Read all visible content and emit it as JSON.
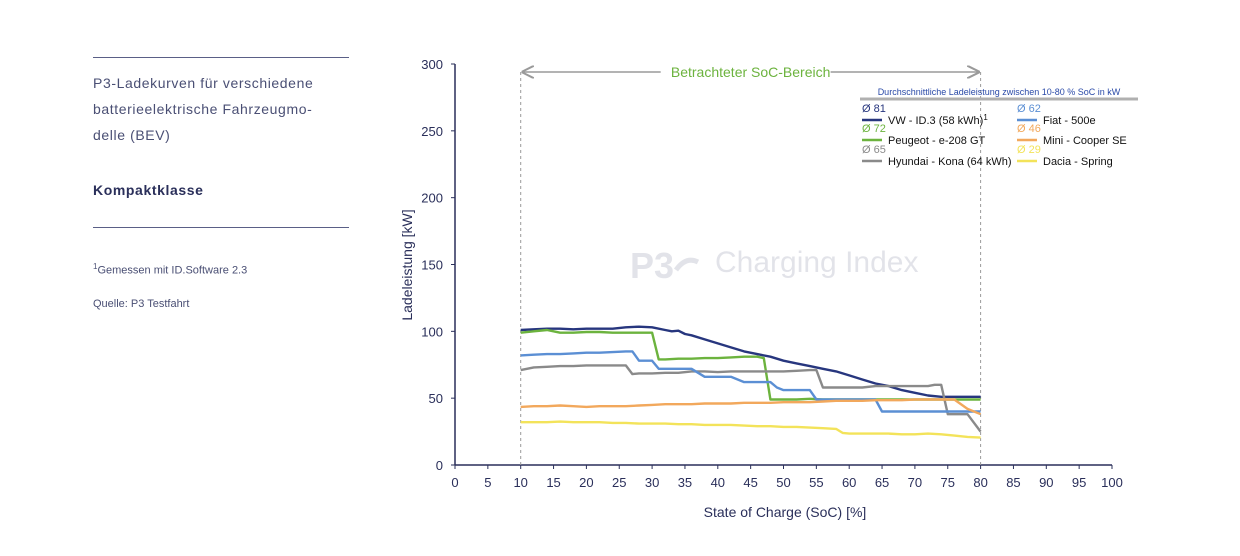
{
  "sidebar": {
    "caption": "P3-Ladekurven für verschiedene batterieelektrische Fahrzeugmo-delle (BEV)",
    "caption_lines": [
      "P3-Ladekurven für verschiedene",
      "batterieelektrische Fahrzeugmo-",
      "delle (BEV)"
    ],
    "category": "Kompaktklasse",
    "footnote_mark": "1",
    "footnote": "Gemessen mit ID.Software 2.3",
    "source": "Quelle: P3 Testfahrt"
  },
  "watermark": "Charging Index",
  "watermark_logo": "P3",
  "chart_data": {
    "type": "line",
    "title": "",
    "xlabel": "State of Charge (SoC) [%]",
    "ylabel": "Ladeleistung [kW]",
    "xlim": [
      0,
      100
    ],
    "ylim": [
      0,
      300
    ],
    "xticks": [
      0,
      5,
      10,
      15,
      20,
      25,
      30,
      35,
      40,
      45,
      50,
      55,
      60,
      65,
      70,
      75,
      80,
      85,
      90,
      95,
      100
    ],
    "yticks": [
      0,
      50,
      100,
      150,
      200,
      250,
      300
    ],
    "grid": false,
    "range_annotation": {
      "label": "Betrachteter SoC-Bereich",
      "from": 10,
      "to": 80,
      "color": "#6cb33e"
    },
    "legend_title": "Durchschnittliche Ladeleistung zwischen 10-80 % SoC in kW",
    "legend_position": "top-right",
    "series": [
      {
        "name": "VW - ID.3 (58 kWh)",
        "name_sup": "1",
        "avg": "Ø 81",
        "color": "#27367e",
        "x": [
          10,
          12,
          14,
          16,
          18,
          20,
          22,
          24,
          26,
          28,
          30,
          32,
          33,
          34,
          35,
          36,
          38,
          40,
          42,
          44,
          46,
          48,
          50,
          52,
          54,
          56,
          58,
          60,
          62,
          64,
          66,
          68,
          70,
          72,
          74,
          76,
          78,
          80
        ],
        "y": [
          101,
          101.5,
          102,
          102,
          101.5,
          102,
          102,
          102,
          103,
          103.5,
          103,
          101,
          100,
          100.5,
          98,
          97,
          94,
          91,
          88,
          85,
          83,
          81,
          78,
          76,
          74,
          72,
          70,
          67,
          64,
          61,
          59,
          56,
          54,
          52,
          51,
          51,
          51,
          51
        ]
      },
      {
        "name": "Peugeot - e-208 GT",
        "avg": "Ø 72",
        "color": "#6cb33e",
        "x": [
          10,
          12,
          14,
          15,
          16,
          18,
          20,
          22,
          24,
          26,
          28,
          30,
          31,
          32,
          34,
          36,
          38,
          40,
          42,
          44,
          46,
          47,
          48,
          50,
          52,
          54,
          56,
          58,
          60,
          62,
          64,
          66,
          68,
          70,
          72,
          74,
          76,
          78,
          80
        ],
        "y": [
          99,
          100,
          101,
          100,
          99,
          99,
          99.5,
          99.5,
          99,
          99,
          99,
          99,
          79,
          79,
          79.5,
          79.5,
          80,
          80,
          80.5,
          81,
          81,
          80,
          49,
          49,
          49,
          49.5,
          49,
          49,
          49,
          49,
          49,
          49,
          49,
          49,
          49,
          49,
          49,
          49,
          49
        ]
      },
      {
        "name": "Hyundai - Kona (64 kWh)",
        "avg": "Ø 65",
        "color": "#8a8a8a",
        "x": [
          10,
          12,
          14,
          16,
          18,
          20,
          22,
          24,
          26,
          27,
          28,
          30,
          32,
          34,
          36,
          38,
          40,
          42,
          44,
          46,
          48,
          50,
          52,
          54,
          55,
          56,
          58,
          60,
          62,
          64,
          66,
          68,
          70,
          72,
          73,
          74,
          75,
          76,
          78,
          80
        ],
        "y": [
          71,
          73,
          73.5,
          74,
          74,
          74.5,
          74.5,
          74.5,
          74.5,
          68,
          68.5,
          68.5,
          69,
          69,
          70,
          70,
          69.5,
          70,
          70,
          70,
          70,
          70,
          70.5,
          71,
          71,
          58,
          58,
          58,
          58,
          59,
          59,
          59,
          59,
          59,
          60,
          60,
          38,
          38,
          38,
          25
        ]
      },
      {
        "name": "Fiat - 500e",
        "avg": "Ø 62",
        "color": "#5b8fd4",
        "x": [
          10,
          12,
          14,
          16,
          18,
          20,
          22,
          24,
          26,
          27,
          28,
          30,
          31,
          32,
          34,
          36,
          38,
          40,
          42,
          44,
          46,
          48,
          49,
          50,
          52,
          54,
          55,
          56,
          58,
          60,
          62,
          64,
          65,
          66,
          68,
          70,
          72,
          74,
          76,
          78,
          80
        ],
        "y": [
          82,
          82.5,
          83,
          83,
          83.5,
          84,
          84,
          84.5,
          85,
          85,
          78,
          78,
          72,
          72,
          72,
          72,
          66,
          66,
          66,
          62,
          62,
          62,
          58,
          56,
          56,
          56,
          49,
          49,
          49,
          49,
          49,
          49,
          40,
          40,
          40,
          40,
          40,
          40,
          40,
          40,
          40
        ]
      },
      {
        "name": "Mini - Cooper SE",
        "avg": "Ø 46",
        "color": "#f2a85c",
        "x": [
          10,
          12,
          14,
          16,
          18,
          20,
          22,
          24,
          26,
          28,
          30,
          32,
          34,
          36,
          38,
          40,
          42,
          44,
          46,
          48,
          50,
          52,
          54,
          56,
          58,
          60,
          62,
          64,
          66,
          68,
          70,
          72,
          74,
          76,
          78,
          80
        ],
        "y": [
          43.5,
          44,
          44,
          44.5,
          44,
          43.5,
          44,
          44,
          44,
          44.5,
          45,
          45.5,
          45.5,
          45.5,
          46,
          46,
          46,
          46.5,
          46.5,
          46.5,
          47,
          47,
          47,
          47.5,
          48,
          48,
          48,
          48.5,
          48.5,
          48.5,
          49,
          49,
          49,
          49,
          42,
          38
        ]
      },
      {
        "name": "Dacia - Spring",
        "avg": "Ø 29",
        "color": "#f3e35a",
        "x": [
          10,
          12,
          14,
          16,
          18,
          20,
          22,
          24,
          26,
          28,
          30,
          32,
          34,
          36,
          38,
          40,
          42,
          44,
          46,
          48,
          50,
          52,
          54,
          56,
          58,
          59,
          60,
          62,
          64,
          66,
          68,
          70,
          72,
          74,
          76,
          78,
          80
        ],
        "y": [
          32,
          32,
          32,
          32.5,
          32,
          32,
          32,
          31.5,
          31.5,
          31,
          31,
          31,
          30.5,
          30.5,
          30,
          30,
          30,
          29.5,
          29,
          29,
          28.5,
          28.5,
          28,
          27.5,
          27,
          24,
          23.5,
          23.5,
          23.5,
          23.5,
          23,
          23,
          23.5,
          23,
          22,
          21,
          20.5
        ]
      }
    ]
  }
}
